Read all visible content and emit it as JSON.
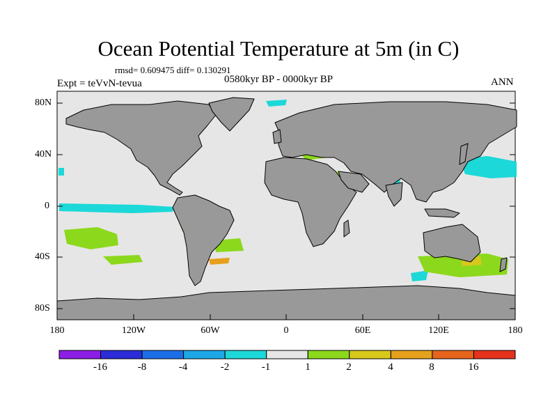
{
  "title": "Ocean Potential Temperature at 5m (in C)",
  "stats": "rmsd= 0.609475 diff= 0.130291",
  "experiment": "Expt = teVvN-tevua",
  "period": "0580kyr BP - 0000kyr BP",
  "season": "ANN",
  "map": {
    "lat_labels": [
      "80N",
      "40N",
      "0",
      "40S",
      "80S"
    ],
    "lon_labels": [
      "180",
      "120W",
      "60W",
      "0",
      "60E",
      "120E",
      "180"
    ],
    "colors": {
      "land": "#999999",
      "ocean_neutral": "#e6e6e6",
      "coast": "#000000"
    }
  },
  "colorbar": {
    "labels": [
      "-16",
      "-8",
      "-4",
      "-2",
      "-1",
      "1",
      "2",
      "4",
      "8",
      "16"
    ],
    "colors": [
      "#8c1ee6",
      "#2c2cd8",
      "#1c6ee6",
      "#1ca8e6",
      "#1cd8d8",
      "#e6e6e6",
      "#8cd81c",
      "#d8c81c",
      "#e6a01c",
      "#e6641c",
      "#e6321c"
    ]
  }
}
